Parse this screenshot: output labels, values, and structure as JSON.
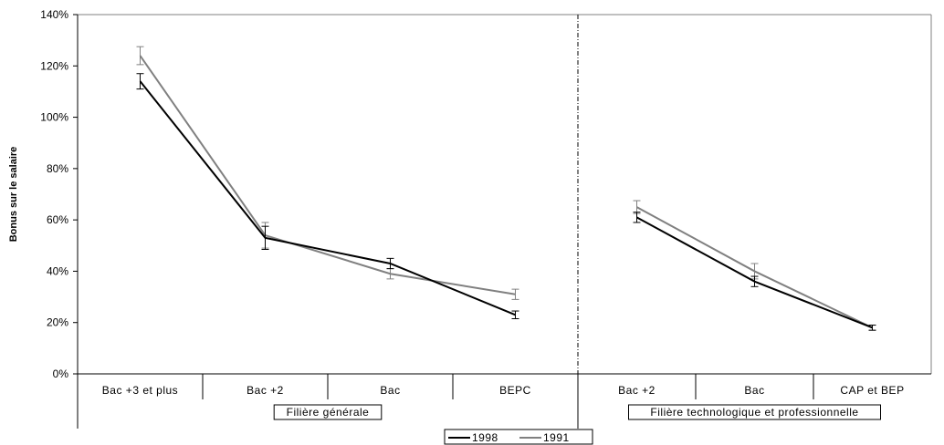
{
  "chart_data": {
    "type": "line",
    "ylabel": "Bonus sur le salaire",
    "xlabel": "",
    "title": "",
    "ylim": [
      0,
      140
    ],
    "yticks": [
      "0%",
      "20%",
      "40%",
      "60%",
      "80%",
      "100%",
      "120%",
      "140%"
    ],
    "grid": false,
    "legend_position": "bottom-center",
    "groups": [
      {
        "label": "Filière générale",
        "categories": [
          "Bac +3 et plus",
          "Bac +2",
          "Bac",
          "BEPC"
        ],
        "series": [
          {
            "name": "1998",
            "color": "#000000",
            "values": [
              114,
              53,
              43,
              23
            ],
            "error": [
              3,
              4.5,
              2,
              1.5
            ]
          },
          {
            "name": "1991",
            "color": "#808080",
            "values": [
              124,
              54,
              39,
              31
            ],
            "error": [
              3.5,
              5,
              2,
              2
            ]
          }
        ]
      },
      {
        "label": "Filière technologique et professionnelle",
        "categories": [
          "Bac +2",
          "Bac",
          "CAP et BEP"
        ],
        "series": [
          {
            "name": "1998",
            "color": "#000000",
            "values": [
              61,
              36,
              18
            ],
            "error": [
              2,
              2,
              1
            ]
          },
          {
            "name": "1991",
            "color": "#808080",
            "values": [
              65,
              40,
              18
            ],
            "error": [
              2.5,
              3,
              1
            ]
          }
        ]
      }
    ],
    "legend": [
      {
        "name": "1998",
        "color": "#000000"
      },
      {
        "name": "1991",
        "color": "#808080"
      }
    ]
  }
}
